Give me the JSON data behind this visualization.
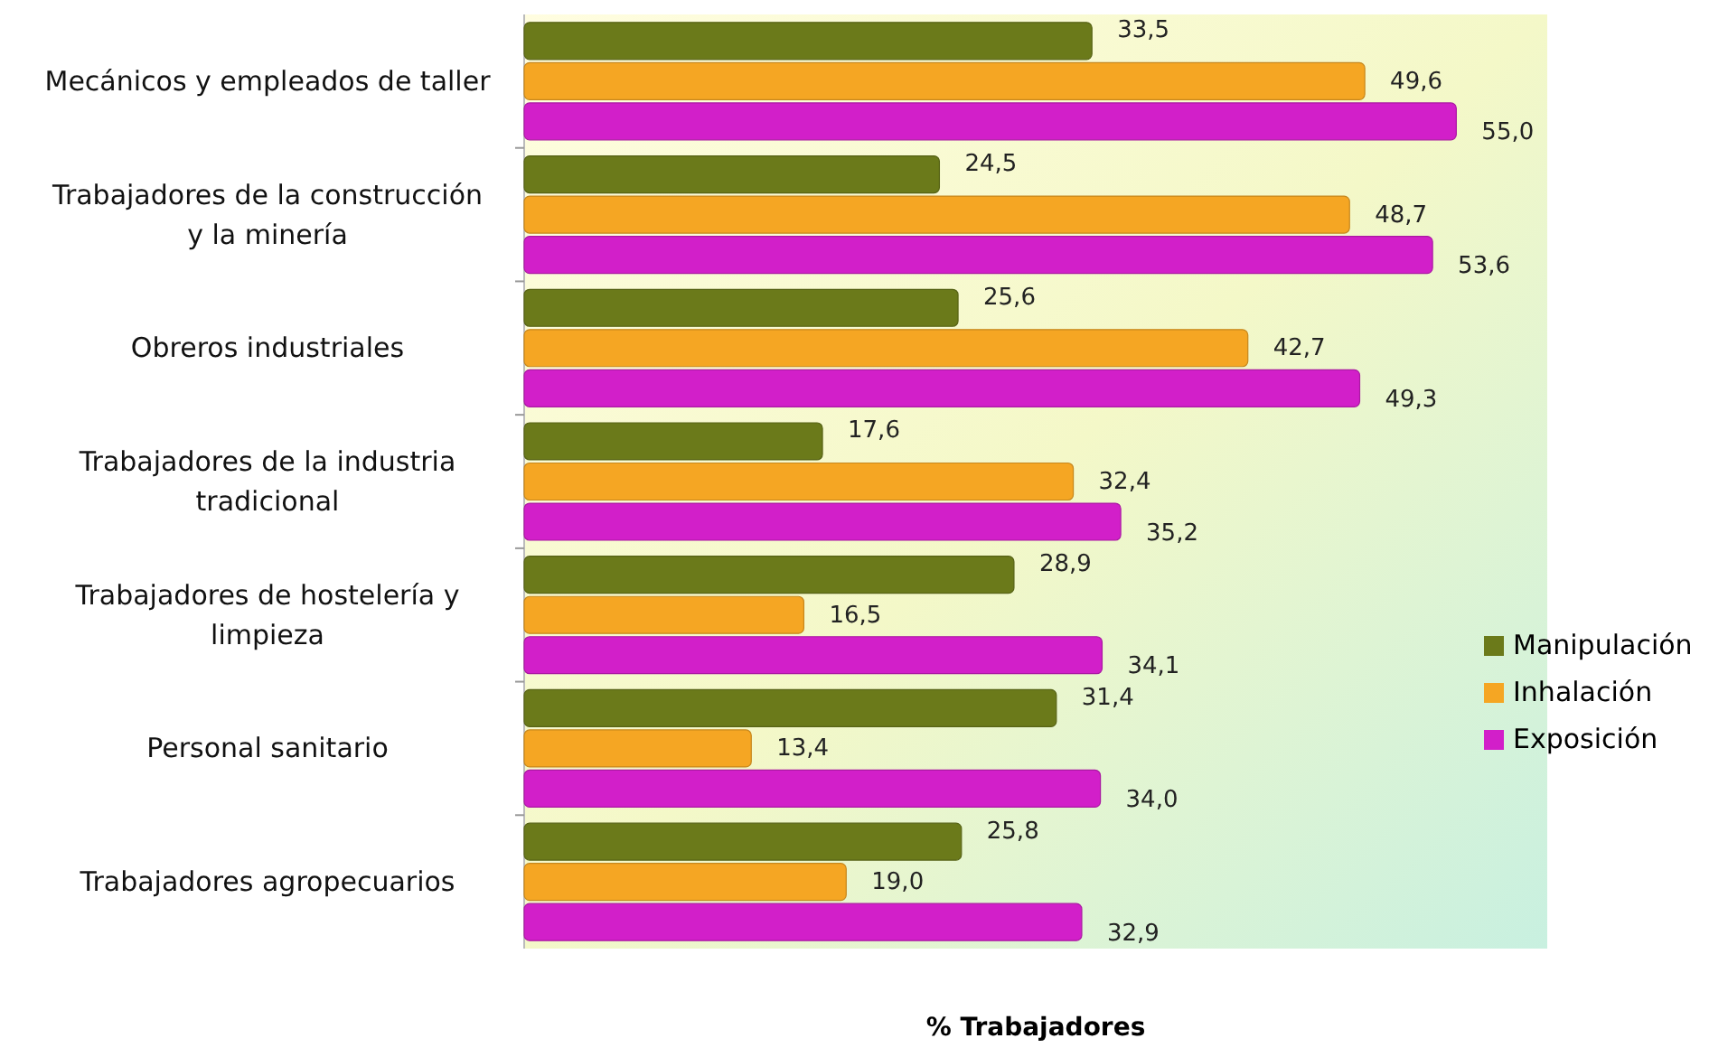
{
  "chart_data": {
    "type": "bar",
    "orientation": "horizontal",
    "xlabel": "% Trabajadores",
    "legend": "right",
    "categories": [
      "Mecánicos y empleados de taller",
      "Trabajadores de la construcción y la minería",
      "Obreros industriales",
      "Trabajadores de la industria tradicional",
      "Trabajadores de hostelería y limpieza",
      "Personal sanitario",
      "Trabajadores agropecuarios"
    ],
    "series": [
      {
        "name": "Manipulación",
        "color": "#6b7a1a",
        "values": [
          33.5,
          24.5,
          25.6,
          17.6,
          28.9,
          31.4,
          25.8
        ],
        "value_labels": [
          "33,5",
          "24,5",
          "25,6",
          "17,6",
          "28,9",
          "31,4",
          "25,8"
        ]
      },
      {
        "name": "Inhalación",
        "color": "#f5a623",
        "values": [
          49.6,
          48.7,
          42.7,
          32.4,
          16.5,
          13.4,
          19.0
        ],
        "value_labels": [
          "49,6",
          "48,7",
          "42,7",
          "32,4",
          "16,5",
          "13,4",
          "19,0"
        ]
      },
      {
        "name": "Exposición",
        "color": "#d21fc9",
        "values": [
          55.0,
          53.6,
          49.3,
          35.2,
          34.1,
          34.0,
          32.9
        ],
        "value_labels": [
          "55,0",
          "53,6",
          "49,3",
          "35,2",
          "34,1",
          "34,0",
          "32,9"
        ]
      }
    ]
  }
}
